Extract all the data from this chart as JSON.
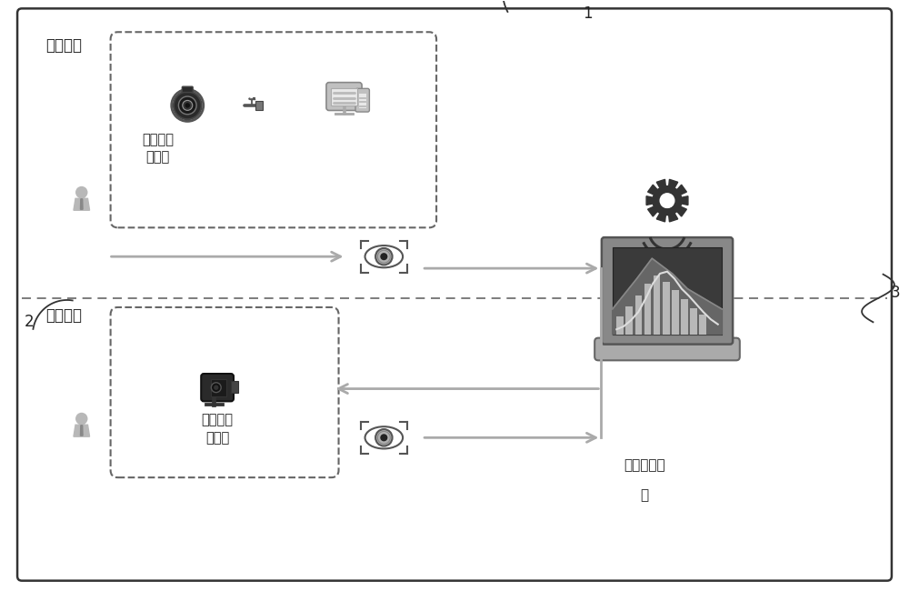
{
  "label_iris_collection": "虹膜采集",
  "label_iris_compare": "虹膜比对",
  "label_collection_cam": "虹膜采集\n摄像头",
  "label_recognition_cam": "虹膜识别\n摄像头",
  "label_system_line1": "虹膜识别系",
  "label_system_line2": "统",
  "label_1": "1",
  "label_2": "2",
  "label_3": "3",
  "bg_color": "#ffffff",
  "border_color": "#333333",
  "dash_color": "#666666",
  "text_color": "#222222",
  "arrow_color": "#aaaaaa",
  "figsize": [
    10,
    6.5
  ],
  "dpi": 100
}
